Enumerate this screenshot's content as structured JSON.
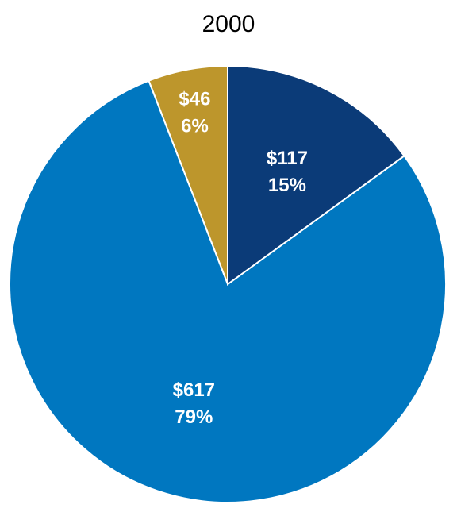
{
  "chart_data": {
    "type": "pie",
    "title": "2000",
    "slices": [
      {
        "value_label": "$46",
        "percent_label": "6%",
        "value": 46,
        "color": "#BD962C"
      },
      {
        "value_label": "$617",
        "percent_label": "79%",
        "value": 617,
        "color": "#0077C0"
      },
      {
        "value_label": "$117",
        "percent_label": "15%",
        "value": 117,
        "color": "#0B3B78"
      }
    ],
    "slice_border_color": "#ffffff",
    "start": "12 o'clock, counter-clockwise"
  }
}
